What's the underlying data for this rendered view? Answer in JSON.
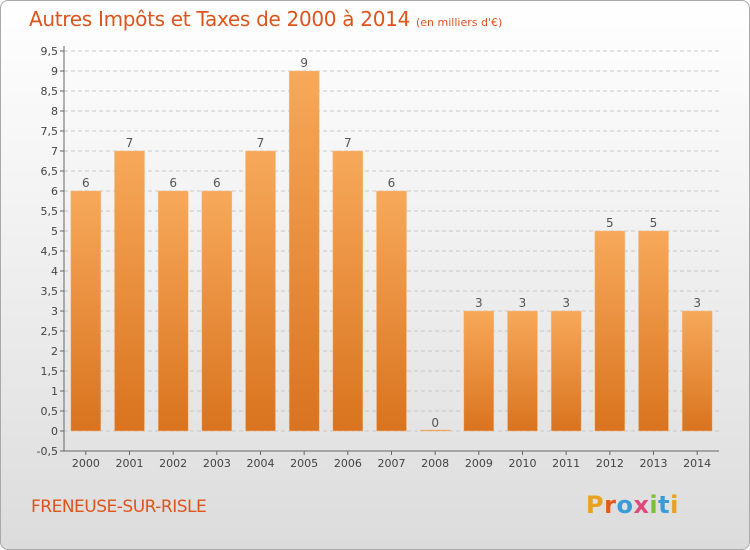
{
  "header": {
    "title": "Autres Impôts et Taxes de 2000 à 2014",
    "subtitle": "(en milliers d'€)"
  },
  "footer": {
    "town": "FRENEUSE-SUR-RISLE",
    "logo": "Proxiti"
  },
  "colors": {
    "title": "#e0541c",
    "bar_top": "#f7a95a",
    "bar_bottom": "#d9731f",
    "grid": "#c8c8c8"
  },
  "chart_data": {
    "type": "bar",
    "categories": [
      "2000",
      "2001",
      "2002",
      "2003",
      "2004",
      "2005",
      "2006",
      "2007",
      "2008",
      "2009",
      "2010",
      "2011",
      "2012",
      "2013",
      "2014"
    ],
    "values": [
      6,
      7,
      6,
      6,
      7,
      9,
      7,
      6,
      0,
      3,
      3,
      3,
      5,
      5,
      3
    ],
    "title": "Autres Impôts et Taxes de 2000 à 2014",
    "subtitle": "(en milliers d'€)",
    "xlabel": "",
    "ylabel": "",
    "ylim": [
      -0.5,
      9.5
    ],
    "yticks": [
      "-0,5",
      "0",
      "0,5",
      "1",
      "1,5",
      "2",
      "2,5",
      "3",
      "3,5",
      "4",
      "4,5",
      "5",
      "5,5",
      "6",
      "6,5",
      "7",
      "7,5",
      "8",
      "8,5",
      "9",
      "9,5"
    ],
    "grid": true,
    "legend": "none"
  }
}
